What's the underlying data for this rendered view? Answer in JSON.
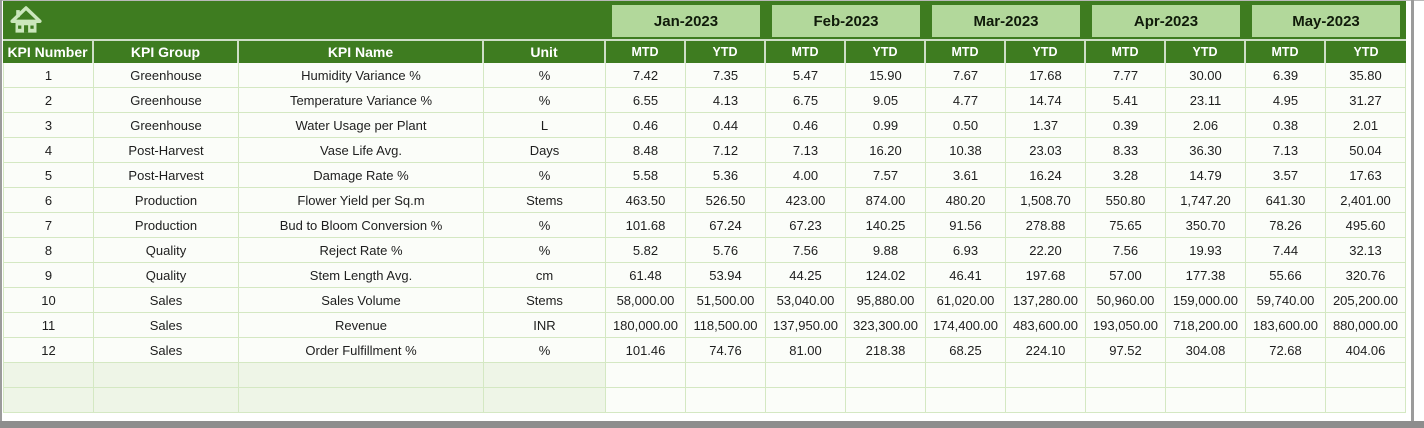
{
  "header": {
    "home_icon": "home-icon",
    "left_columns": [
      "KPI Number",
      "KPI Group",
      "KPI Name",
      "Unit"
    ],
    "months": [
      "Jan-2023",
      "Feb-2023",
      "Mar-2023",
      "Apr-2023",
      "May-2023"
    ],
    "sub_columns": [
      "MTD",
      "YTD"
    ]
  },
  "table": {
    "rows": [
      {
        "number": "1",
        "group": "Greenhouse",
        "name": "Humidity Variance %",
        "unit": "%",
        "values": [
          "7.42",
          "7.35",
          "5.47",
          "15.90",
          "7.67",
          "17.68",
          "7.77",
          "30.00",
          "6.39",
          "35.80"
        ]
      },
      {
        "number": "2",
        "group": "Greenhouse",
        "name": "Temperature Variance %",
        "unit": "%",
        "values": [
          "6.55",
          "4.13",
          "6.75",
          "9.05",
          "4.77",
          "14.74",
          "5.41",
          "23.11",
          "4.95",
          "31.27"
        ]
      },
      {
        "number": "3",
        "group": "Greenhouse",
        "name": "Water Usage per Plant",
        "unit": "L",
        "values": [
          "0.46",
          "0.44",
          "0.46",
          "0.99",
          "0.50",
          "1.37",
          "0.39",
          "2.06",
          "0.38",
          "2.01"
        ]
      },
      {
        "number": "4",
        "group": "Post-Harvest",
        "name": "Vase Life Avg.",
        "unit": "Days",
        "values": [
          "8.48",
          "7.12",
          "7.13",
          "16.20",
          "10.38",
          "23.03",
          "8.33",
          "36.30",
          "7.13",
          "50.04"
        ]
      },
      {
        "number": "5",
        "group": "Post-Harvest",
        "name": "Damage Rate %",
        "unit": "%",
        "values": [
          "5.58",
          "5.36",
          "4.00",
          "7.57",
          "3.61",
          "16.24",
          "3.28",
          "14.79",
          "3.57",
          "17.63"
        ]
      },
      {
        "number": "6",
        "group": "Production",
        "name": "Flower Yield per Sq.m",
        "unit": "Stems",
        "values": [
          "463.50",
          "526.50",
          "423.00",
          "874.00",
          "480.20",
          "1,508.70",
          "550.80",
          "1,747.20",
          "641.30",
          "2,401.00"
        ]
      },
      {
        "number": "7",
        "group": "Production",
        "name": "Bud to Bloom Conversion %",
        "unit": "%",
        "values": [
          "101.68",
          "67.24",
          "67.23",
          "140.25",
          "91.56",
          "278.88",
          "75.65",
          "350.70",
          "78.26",
          "495.60"
        ]
      },
      {
        "number": "8",
        "group": "Quality",
        "name": "Reject Rate %",
        "unit": "%",
        "values": [
          "5.82",
          "5.76",
          "7.56",
          "9.88",
          "6.93",
          "22.20",
          "7.56",
          "19.93",
          "7.44",
          "32.13"
        ]
      },
      {
        "number": "9",
        "group": "Quality",
        "name": "Stem Length Avg.",
        "unit": "cm",
        "values": [
          "61.48",
          "53.94",
          "44.25",
          "124.02",
          "46.41",
          "197.68",
          "57.00",
          "177.38",
          "55.66",
          "320.76"
        ]
      },
      {
        "number": "10",
        "group": "Sales",
        "name": "Sales Volume",
        "unit": "Stems",
        "values": [
          "58,000.00",
          "51,500.00",
          "53,040.00",
          "95,880.00",
          "61,020.00",
          "137,280.00",
          "50,960.00",
          "159,000.00",
          "59,740.00",
          "205,200.00"
        ]
      },
      {
        "number": "11",
        "group": "Sales",
        "name": "Revenue",
        "unit": "INR",
        "values": [
          "180,000.00",
          "118,500.00",
          "137,950.00",
          "323,300.00",
          "174,400.00",
          "483,600.00",
          "193,050.00",
          "718,200.00",
          "183,600.00",
          "880,000.00"
        ]
      },
      {
        "number": "12",
        "group": "Sales",
        "name": "Order Fulfillment %",
        "unit": "%",
        "values": [
          "101.46",
          "74.76",
          "81.00",
          "218.38",
          "68.25",
          "224.10",
          "97.52",
          "304.08",
          "72.68",
          "404.06"
        ]
      }
    ],
    "empty_row_count": 2
  },
  "colors": {
    "header_dark_green": "#3e7c20",
    "header_light_green": "#b2d89b",
    "grid_line": "#d4e8c3",
    "cell_bg": "#fbfdf9",
    "empty_left_bg": "#eef5e7",
    "frame_gray": "#8d8d8d",
    "icon_pale_green": "#cbe7bc"
  }
}
